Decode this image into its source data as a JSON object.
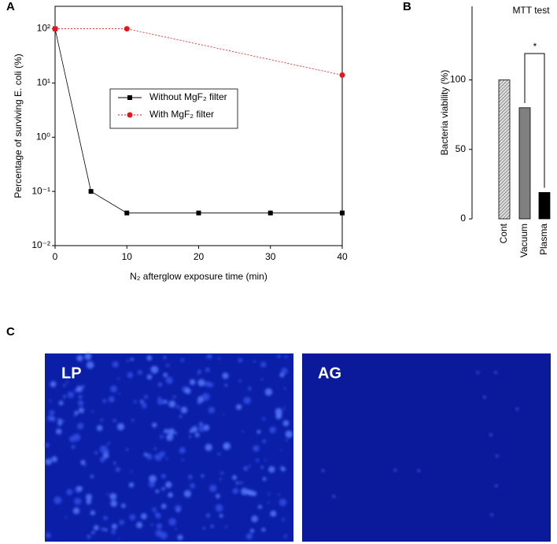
{
  "panels": [
    "A",
    "B",
    "C"
  ],
  "images": [
    {
      "label": "LP"
    },
    {
      "label": "AG"
    }
  ],
  "chart_data": [
    {
      "type": "line",
      "log_y": true,
      "x_label": "N₂ afterglow exposure time (min)",
      "y_label": "Percentage of surviving E. coli (%)",
      "xlim": [
        0,
        40
      ],
      "xticks": [
        0,
        10,
        20,
        30,
        40
      ],
      "ylim": [
        0.01,
        260
      ],
      "yticks": [
        {
          "value": 0.01,
          "label": "10⁻²"
        },
        {
          "value": 0.1,
          "label": "10⁻¹"
        },
        {
          "value": 1,
          "label": "10⁰"
        },
        {
          "value": 10,
          "label": "10¹"
        },
        {
          "value": 100,
          "label": "10²"
        }
      ],
      "series": [
        {
          "name": "Without MgF₂ filter",
          "color": "#000000",
          "marker": "square",
          "dash": false,
          "x": [
            0,
            5,
            10,
            20,
            30,
            40
          ],
          "values": [
            100,
            0.1,
            0.04,
            0.04,
            0.04,
            0.04
          ]
        },
        {
          "name": "With MgF₂ filter",
          "color": "#e8141b",
          "marker": "circle",
          "dash": true,
          "x": [
            0,
            10,
            40
          ],
          "values": [
            100,
            100,
            14
          ]
        }
      ]
    },
    {
      "type": "bar",
      "title": "MTT test",
      "y_label": "Bacteria viability (%)",
      "categories": [
        "Cont",
        "Vacuum",
        "Plasma"
      ],
      "values": [
        100,
        80,
        19
      ],
      "colors": [
        "#c8c8c8",
        "#808080",
        "#000000"
      ],
      "hatch": [
        true,
        false,
        false
      ],
      "ylim": [
        0,
        153
      ],
      "yticks": [
        0,
        50,
        100
      ],
      "annotation": "*"
    }
  ]
}
